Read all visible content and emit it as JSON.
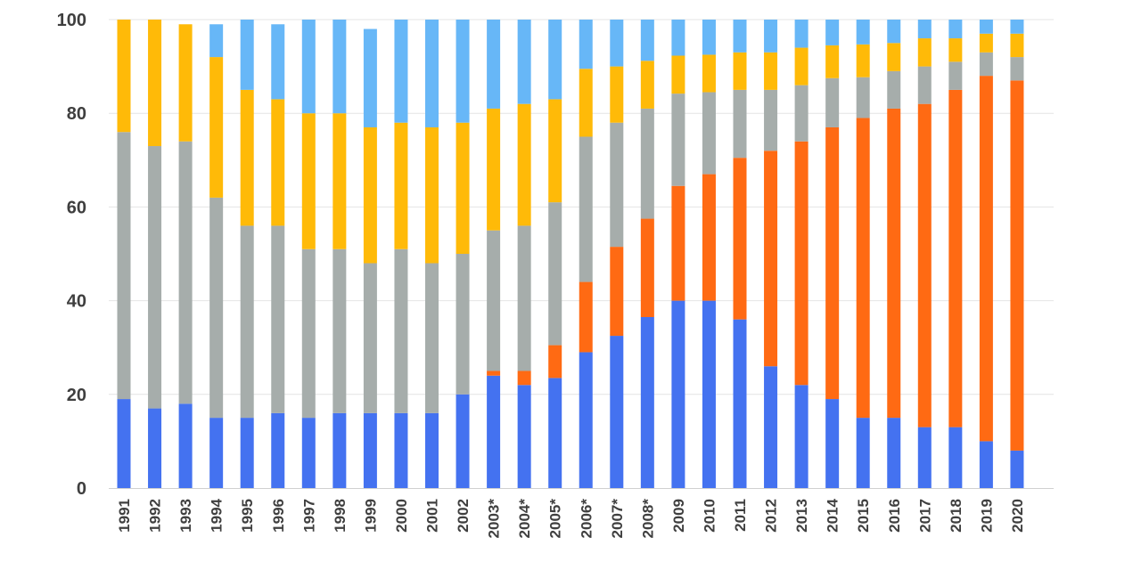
{
  "chart_data": {
    "type": "bar",
    "stacked": true,
    "title": "",
    "xlabel": "",
    "ylabel": "",
    "ylim": [
      0,
      100
    ],
    "yticks": [
      "0",
      "20",
      "40",
      "60",
      "80",
      "100"
    ],
    "grid": true,
    "legend": "none",
    "categories": [
      "1991",
      "1992",
      "1993",
      "1994",
      "1995",
      "1996",
      "1997",
      "1998",
      "1999",
      "2000",
      "2001",
      "2002",
      "2003*",
      "2004*",
      "2005*",
      "2006*",
      "2007*",
      "2008*",
      "2009",
      "2010",
      "2011",
      "2012",
      "2013",
      "2014",
      "2015",
      "2016",
      "2017",
      "2018",
      "2019",
      "2020"
    ],
    "series": [
      {
        "name": "blue",
        "color": "#4472f0",
        "values": [
          19,
          17,
          18,
          15,
          15,
          16,
          15,
          16,
          16,
          16,
          16,
          20,
          24,
          22,
          23.5,
          29,
          32.5,
          36.5,
          40,
          40,
          36,
          26,
          22,
          19,
          15,
          15,
          13,
          13,
          10,
          8
        ]
      },
      {
        "name": "orange",
        "color": "#ff6a13",
        "values": [
          0,
          0,
          0,
          0,
          0,
          0,
          0,
          0,
          0,
          0,
          0,
          0,
          1,
          3,
          7,
          15,
          19,
          21,
          24.5,
          27,
          34.5,
          46,
          52,
          58,
          64,
          66,
          69,
          72,
          78,
          79
        ]
      },
      {
        "name": "gray",
        "color": "#a6adab",
        "values": [
          57,
          56,
          56,
          47,
          41,
          40,
          36,
          35,
          32,
          35,
          32,
          30,
          30,
          31,
          30.5,
          31,
          26.5,
          23.5,
          19.7,
          17.5,
          14.5,
          13,
          12,
          10.5,
          8.7,
          8,
          8,
          6,
          5,
          5
        ]
      },
      {
        "name": "yellow",
        "color": "#ffba08",
        "values": [
          24,
          27,
          25,
          30,
          29,
          27,
          29,
          29,
          29,
          27,
          29,
          28,
          26,
          26,
          22,
          14.5,
          12,
          10.2,
          8.1,
          8,
          8,
          8,
          8,
          7,
          7,
          6,
          6,
          5,
          4,
          5
        ]
      },
      {
        "name": "light-blue",
        "color": "#67b7f7",
        "values": [
          0,
          0,
          0,
          7,
          15,
          16,
          20,
          20,
          21,
          22,
          23,
          22,
          19,
          18,
          17,
          10.5,
          10,
          8.8,
          7.7,
          7.5,
          7,
          7,
          6,
          5.5,
          5.3,
          5,
          4,
          4,
          3,
          3
        ]
      }
    ]
  }
}
